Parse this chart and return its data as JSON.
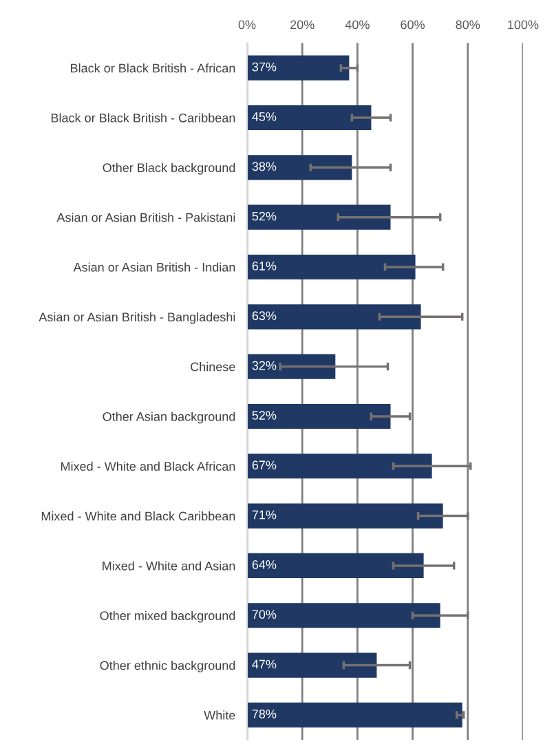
{
  "chart_data": {
    "type": "bar",
    "orientation": "horizontal",
    "categories": [
      "Black or Black British - African",
      "Black or Black British - Caribbean",
      "Other Black background",
      "Asian or Asian British - Pakistani",
      "Asian or Asian British - Indian",
      "Asian or Asian British - Bangladeshi",
      "Chinese",
      "Other Asian background",
      "Mixed - White and Black African",
      "Mixed - White and Black Caribbean",
      "Mixed - White and Asian",
      "Other mixed background",
      "Other ethnic background",
      "White"
    ],
    "values": [
      37,
      45,
      38,
      52,
      61,
      63,
      32,
      52,
      67,
      71,
      64,
      70,
      47,
      78
    ],
    "errors": [
      [
        34,
        40
      ],
      [
        38,
        52
      ],
      [
        23,
        52
      ],
      [
        33,
        70
      ],
      [
        50,
        71
      ],
      [
        48,
        78
      ],
      [
        12,
        51
      ],
      [
        45,
        59
      ],
      [
        53,
        81
      ],
      [
        62,
        80
      ],
      [
        53,
        75
      ],
      [
        60,
        80
      ],
      [
        35,
        59
      ],
      [
        76,
        78.5
      ]
    ],
    "value_labels": [
      "37%",
      "45%",
      "38%",
      "52%",
      "61%",
      "63%",
      "32%",
      "52%",
      "67%",
      "71%",
      "64%",
      "70%",
      "47%",
      "78%"
    ],
    "color": "#203864",
    "xlim": [
      0,
      100
    ],
    "xticks": [
      {
        "value": 0,
        "label": "0%"
      },
      {
        "value": 20,
        "label": "20%"
      },
      {
        "value": 40,
        "label": "40%"
      },
      {
        "value": 60,
        "label": "60%"
      },
      {
        "value": 80,
        "label": "80%"
      },
      {
        "value": 100,
        "label": "100%"
      }
    ],
    "grid": "x",
    "legend": false
  }
}
